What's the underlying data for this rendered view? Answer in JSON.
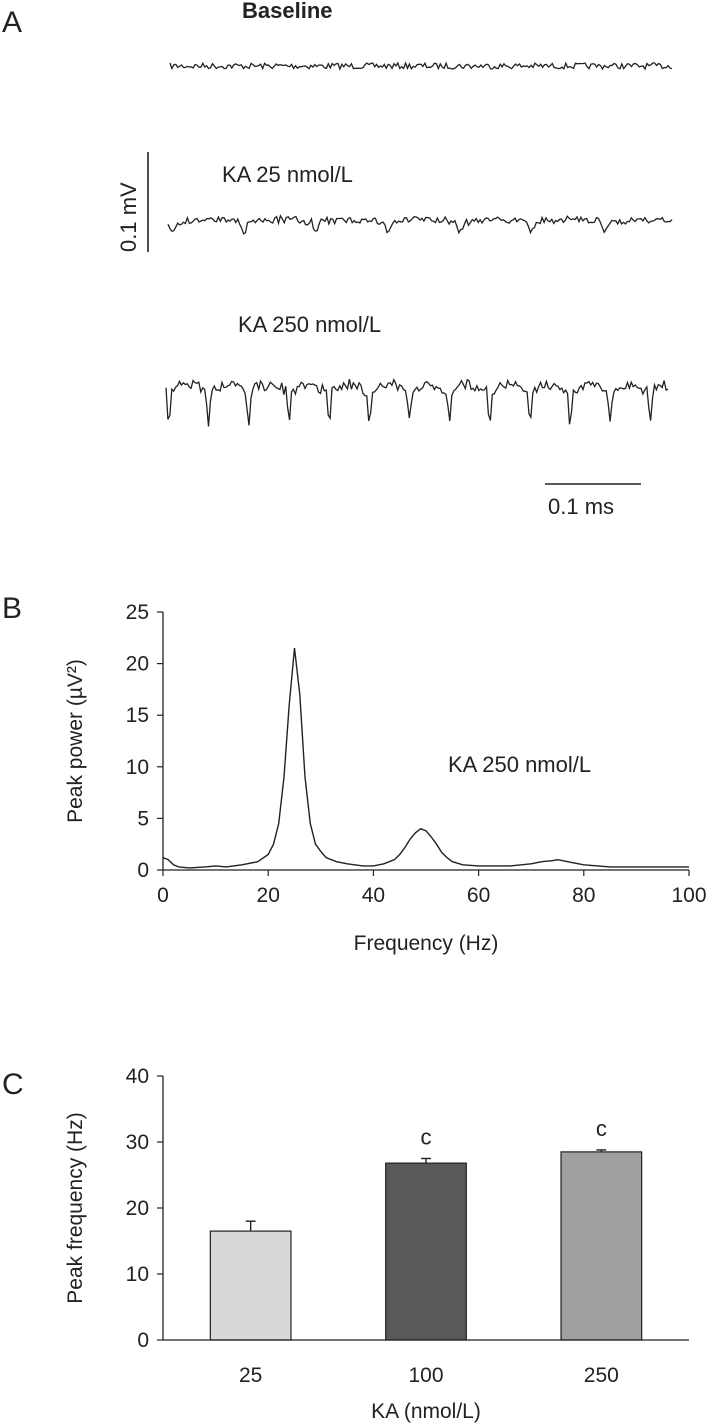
{
  "panel_a": {
    "letter": "A",
    "traces": [
      {
        "label": "Baseline",
        "amplitude_mV": 0.006,
        "rhythm_hz": 0
      },
      {
        "label": "KA 25 nmol/L",
        "amplitude_mV": 0.02,
        "rhythm_hz": 14
      },
      {
        "label": "KA 250 nmol/L",
        "amplitude_mV": 0.06,
        "rhythm_hz": 25
      }
    ],
    "scale_bars": {
      "vertical_label": "0.1 mV",
      "horizontal_label": "0.1 ms"
    }
  },
  "panel_b": {
    "letter": "B",
    "annotation": "KA 250 nmol/L"
  },
  "panel_c": {
    "letter": "C",
    "significance_marker": "c"
  },
  "chart_data": [
    {
      "type": "line",
      "title": "",
      "xlabel": "Frequency (Hz)",
      "ylabel": "Peak power (µV²)",
      "xlim": [
        0,
        100
      ],
      "ylim": [
        0,
        25
      ],
      "xticks": [
        "0",
        "20",
        "40",
        "60",
        "80",
        "100"
      ],
      "yticks": [
        "0",
        "5",
        "10",
        "15",
        "20",
        "25"
      ],
      "grid": false,
      "series": [
        {
          "x": [
            0,
            1,
            2,
            3,
            5,
            8,
            10,
            12,
            15,
            18,
            20,
            21,
            22,
            23,
            24,
            25,
            26,
            27,
            28,
            29,
            30,
            31,
            33,
            35,
            38,
            40,
            42,
            44,
            45,
            46,
            47,
            48,
            49,
            50,
            51,
            52,
            53,
            54,
            55,
            57,
            60,
            63,
            66,
            70,
            72,
            74,
            75,
            76,
            78,
            80,
            85,
            90,
            95,
            100
          ],
          "y": [
            1.2,
            1.0,
            0.5,
            0.3,
            0.2,
            0.3,
            0.4,
            0.3,
            0.5,
            0.8,
            1.5,
            2.5,
            4.5,
            9.0,
            16.0,
            21.5,
            17.0,
            9.0,
            4.5,
            2.5,
            1.8,
            1.2,
            0.8,
            0.6,
            0.4,
            0.4,
            0.6,
            1.0,
            1.5,
            2.2,
            3.0,
            3.6,
            4.0,
            3.8,
            3.2,
            2.5,
            1.7,
            1.2,
            0.8,
            0.5,
            0.4,
            0.4,
            0.4,
            0.6,
            0.8,
            0.9,
            1.0,
            0.9,
            0.7,
            0.5,
            0.3,
            0.3,
            0.3,
            0.3
          ]
        }
      ]
    },
    {
      "type": "bar",
      "title": "",
      "xlabel": "KA (nmol/L)",
      "ylabel": "Peak frequency (Hz)",
      "ylim": [
        0,
        40
      ],
      "yticks": [
        "0",
        "10",
        "20",
        "30",
        "40"
      ],
      "categories": [
        "25",
        "100",
        "250"
      ],
      "values": [
        16.5,
        26.8,
        28.5
      ],
      "errors": [
        1.5,
        0.7,
        0.3
      ],
      "significance": [
        "",
        "c",
        "c"
      ],
      "colors": [
        "#d8d8d8",
        "#595959",
        "#a0a0a0"
      ],
      "grid": false
    }
  ]
}
